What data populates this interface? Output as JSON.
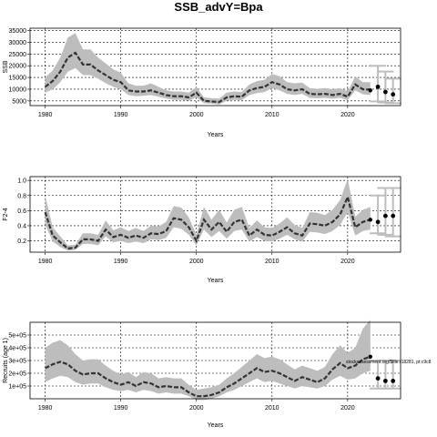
{
  "title": "SSB_advY=Bpa",
  "footnote": "stockassessment.org/$file.r18281, pt:c9c8",
  "colors": {
    "band": "#bdbdbd",
    "line": "#333333",
    "forecast": "#bdbdbd",
    "points": "#000000",
    "grid": "#000000"
  },
  "chart_data": [
    {
      "type": "line",
      "ylabel": "SSB",
      "xlabel": "Years",
      "xlim": [
        1978,
        2027
      ],
      "ylim": [
        3000,
        36000
      ],
      "xticks": [
        1980,
        1990,
        2000,
        2010,
        2020
      ],
      "yticks": [
        5000,
        10000,
        15000,
        20000,
        25000,
        30000,
        35000
      ],
      "ytick_labels": [
        "5000",
        "10000",
        "15000",
        "20000",
        "25000",
        "30000",
        "35000"
      ],
      "x": [
        1980,
        1981,
        1982,
        1983,
        1984,
        1985,
        1986,
        1987,
        1988,
        1989,
        1990,
        1991,
        1992,
        1993,
        1994,
        1995,
        1996,
        1997,
        1998,
        1999,
        2000,
        2001,
        2002,
        2003,
        2004,
        2005,
        2006,
        2007,
        2008,
        2009,
        2010,
        2011,
        2012,
        2013,
        2014,
        2015,
        2016,
        2017,
        2018,
        2019,
        2020,
        2021,
        2022,
        2023
      ],
      "y": [
        11000,
        13500,
        17500,
        23500,
        25500,
        20500,
        20500,
        18000,
        16000,
        14000,
        13000,
        9500,
        9000,
        9000,
        9500,
        8500,
        7500,
        7000,
        7000,
        6500,
        8500,
        5000,
        4800,
        4500,
        6500,
        7000,
        6800,
        9500,
        10500,
        11000,
        13000,
        12000,
        10000,
        9500,
        10000,
        8000,
        7800,
        8000,
        7500,
        8000,
        6800,
        12000,
        10000,
        9800
      ],
      "lower": [
        8500,
        10000,
        13000,
        17500,
        19000,
        16000,
        16000,
        14500,
        12500,
        11000,
        10000,
        7500,
        7000,
        7200,
        7500,
        6800,
        6000,
        5500,
        5500,
        5000,
        6500,
        4000,
        3800,
        3500,
        5000,
        5500,
        5300,
        7500,
        8300,
        8800,
        10500,
        9500,
        8000,
        7500,
        8000,
        6300,
        6100,
        6300,
        5900,
        6300,
        5300,
        9500,
        7800,
        7500
      ],
      "upper": [
        15000,
        18000,
        23500,
        32000,
        34000,
        27000,
        27000,
        23500,
        21000,
        18500,
        17000,
        12500,
        11500,
        11500,
        12500,
        11000,
        9500,
        9000,
        9000,
        8500,
        11000,
        6500,
        6200,
        6000,
        8500,
        9000,
        8800,
        12000,
        13500,
        14000,
        16500,
        15500,
        13000,
        12500,
        12800,
        10500,
        10200,
        10500,
        10000,
        10500,
        9000,
        15500,
        13000,
        13000
      ],
      "forecast": {
        "x": [
          2024,
          2025,
          2026
        ],
        "y": [
          11000,
          8800,
          7800
        ],
        "lower": [
          4800,
          4300,
          4000
        ],
        "upper": [
          20000,
          17500,
          14500
        ],
        "last_point": 9500
      }
    },
    {
      "type": "line",
      "ylabel": "F2-4",
      "xlabel": "Years",
      "xlim": [
        1978,
        2027
      ],
      "ylim": [
        0.05,
        1.05
      ],
      "xticks": [
        1980,
        1990,
        2000,
        2010,
        2020
      ],
      "yticks": [
        0.2,
        0.4,
        0.6,
        0.8,
        1.0
      ],
      "ytick_labels": [
        "0.2",
        "0.4",
        "0.6",
        "0.8",
        "1.0"
      ],
      "x": [
        1980,
        1981,
        1982,
        1983,
        1984,
        1985,
        1986,
        1987,
        1988,
        1989,
        1990,
        1991,
        1992,
        1993,
        1994,
        1995,
        1996,
        1997,
        1998,
        1999,
        2000,
        2001,
        2002,
        2003,
        2004,
        2005,
        2006,
        2007,
        2008,
        2009,
        2010,
        2011,
        2012,
        2013,
        2014,
        2015,
        2016,
        2017,
        2018,
        2019,
        2020,
        2021,
        2022,
        2023
      ],
      "y": [
        0.58,
        0.27,
        0.18,
        0.1,
        0.11,
        0.22,
        0.22,
        0.2,
        0.35,
        0.25,
        0.28,
        0.24,
        0.27,
        0.24,
        0.3,
        0.29,
        0.33,
        0.5,
        0.48,
        0.38,
        0.2,
        0.48,
        0.35,
        0.45,
        0.32,
        0.45,
        0.48,
        0.27,
        0.35,
        0.28,
        0.27,
        0.32,
        0.38,
        0.3,
        0.27,
        0.43,
        0.42,
        0.4,
        0.45,
        0.55,
        0.78,
        0.38,
        0.45,
        0.48
      ],
      "lower": [
        0.42,
        0.19,
        0.12,
        0.07,
        0.08,
        0.16,
        0.16,
        0.14,
        0.26,
        0.18,
        0.2,
        0.17,
        0.19,
        0.17,
        0.22,
        0.21,
        0.24,
        0.38,
        0.36,
        0.28,
        0.14,
        0.35,
        0.25,
        0.33,
        0.23,
        0.33,
        0.35,
        0.19,
        0.25,
        0.2,
        0.19,
        0.23,
        0.28,
        0.22,
        0.19,
        0.32,
        0.31,
        0.29,
        0.33,
        0.41,
        0.58,
        0.27,
        0.33,
        0.35
      ],
      "upper": [
        0.8,
        0.38,
        0.26,
        0.14,
        0.15,
        0.3,
        0.3,
        0.28,
        0.47,
        0.34,
        0.38,
        0.33,
        0.37,
        0.33,
        0.4,
        0.39,
        0.45,
        0.66,
        0.64,
        0.51,
        0.28,
        0.65,
        0.48,
        0.61,
        0.44,
        0.61,
        0.65,
        0.37,
        0.47,
        0.38,
        0.37,
        0.43,
        0.51,
        0.41,
        0.37,
        0.58,
        0.57,
        0.54,
        0.61,
        0.74,
        1.02,
        0.52,
        0.61,
        0.65
      ],
      "forecast": {
        "x": [
          2024,
          2025,
          2026
        ],
        "y": [
          0.45,
          0.53,
          0.53
        ],
        "lower": [
          0.3,
          0.28,
          0.26
        ],
        "upper": [
          0.8,
          0.9,
          0.9
        ],
        "last_point": 0.48
      }
    },
    {
      "type": "line",
      "ylabel": "Recruits (age 1)",
      "xlabel": "Years",
      "xlim": [
        1978,
        2027
      ],
      "ylim": [
        0,
        6
      ],
      "xticks": [
        1980,
        1990,
        2000,
        2010,
        2020
      ],
      "yticks": [
        1,
        2,
        3,
        4,
        5
      ],
      "ytick_labels": [
        "1e+05",
        "2e+05",
        "3e+05",
        "4e+05",
        "5e+05"
      ],
      "x": [
        1980,
        1981,
        1982,
        1983,
        1984,
        1985,
        1986,
        1987,
        1988,
        1989,
        1990,
        1991,
        1992,
        1993,
        1994,
        1995,
        1996,
        1997,
        1998,
        1999,
        2000,
        2001,
        2002,
        2003,
        2004,
        2005,
        2006,
        2007,
        2008,
        2009,
        2010,
        2011,
        2012,
        2013,
        2014,
        2015,
        2016,
        2017,
        2018,
        2019,
        2020,
        2021,
        2022,
        2023
      ],
      "y": [
        2.4,
        2.7,
        2.9,
        2.7,
        2.2,
        1.9,
        2.0,
        2.0,
        1.6,
        1.3,
        1.1,
        1.3,
        1.0,
        1.3,
        1.2,
        0.9,
        1.0,
        0.9,
        0.9,
        0.5,
        0.2,
        0.2,
        0.3,
        0.5,
        0.9,
        1.2,
        1.6,
        2.0,
        2.4,
        2.1,
        2.2,
        2.0,
        1.7,
        1.4,
        1.7,
        1.5,
        1.3,
        1.6,
        2.3,
        2.8,
        2.4,
        2.6,
        3.1,
        3.3
      ],
      "lower": [
        1.3,
        1.6,
        1.8,
        1.7,
        1.3,
        1.1,
        1.2,
        1.2,
        0.9,
        0.7,
        0.6,
        0.7,
        0.5,
        0.7,
        0.6,
        0.4,
        0.5,
        0.4,
        0.4,
        0.2,
        -0.1,
        -0.1,
        0.0,
        0.2,
        0.5,
        0.7,
        1.0,
        1.3,
        1.6,
        1.3,
        1.4,
        1.2,
        1.0,
        0.8,
        1.0,
        0.9,
        0.8,
        1.0,
        1.5,
        1.8,
        1.5,
        1.6,
        2.0,
        2.2
      ],
      "upper": [
        4.0,
        4.4,
        4.6,
        4.2,
        3.5,
        3.0,
        3.1,
        3.1,
        2.6,
        2.2,
        1.9,
        2.1,
        1.7,
        2.1,
        2.0,
        1.6,
        1.7,
        1.6,
        1.6,
        1.1,
        0.7,
        0.8,
        0.9,
        1.1,
        1.6,
        2.0,
        2.5,
        3.0,
        3.5,
        3.2,
        3.3,
        3.1,
        2.7,
        2.3,
        2.6,
        2.4,
        2.2,
        2.5,
        3.5,
        4.2,
        3.6,
        4.0,
        5.5,
        6.2
      ],
      "forecast": {
        "x": [
          2024,
          2025,
          2026
        ],
        "y": [
          1.6,
          1.4,
          1.4
        ],
        "lower": [
          0.8,
          0.8,
          0.8
        ],
        "upper": [
          3.0,
          3.0,
          3.0
        ],
        "last_point": 3.3
      }
    }
  ]
}
